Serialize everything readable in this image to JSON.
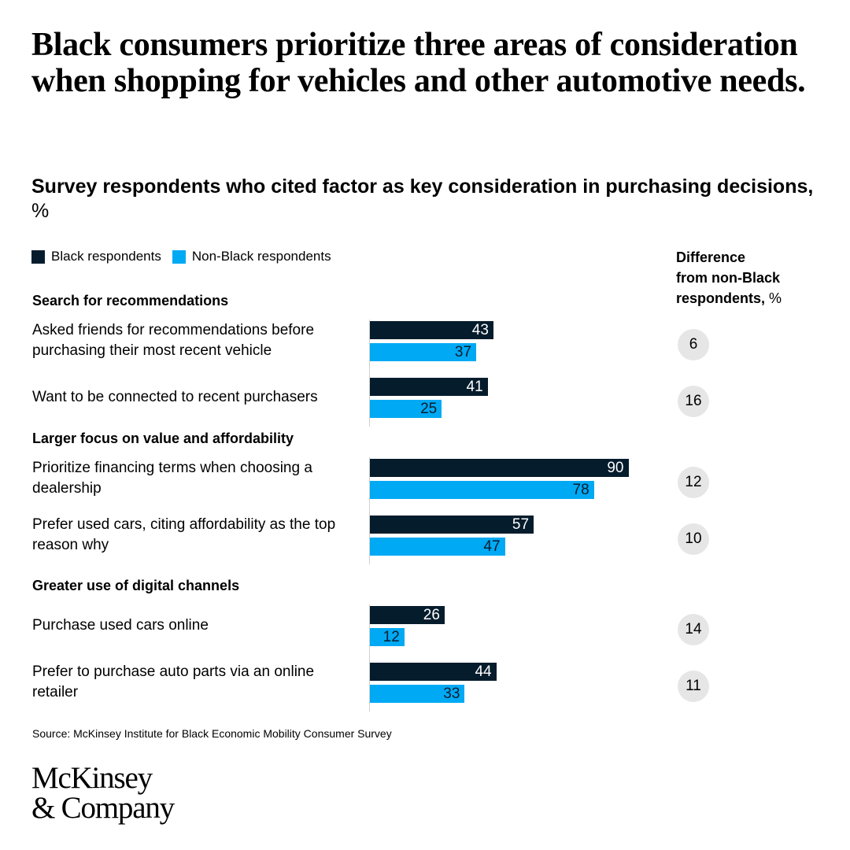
{
  "title": "Black consumers prioritize three areas of consideration when shopping for vehicles and other automotive needs.",
  "subtitle": {
    "main": "Survey respondents who cited factor as key consideration in purchasing decisions,",
    "unit": " %"
  },
  "legend": {
    "black": "Black respondents",
    "nonblack": "Non-Black respondents"
  },
  "diff_header": {
    "line1": "Difference",
    "line2": "from non-Black",
    "line3": "respondents,",
    "unit": " %"
  },
  "colors": {
    "black": "#051c2c",
    "nonblack": "#00a9f4",
    "diff_bg": "#e6e6e6",
    "axis": "#cfcfcf"
  },
  "chart_data": {
    "type": "bar",
    "orientation": "horizontal",
    "series_names": [
      "Black respondents",
      "Non-Black respondents"
    ],
    "groups": [
      {
        "label": "Search for recommendations",
        "rows": [
          {
            "label": "Asked friends for recommendations before purchasing their most recent vehicle",
            "black": 43,
            "nonblack": 37,
            "diff": 6
          },
          {
            "label": "Want to be connected to recent purchasers",
            "black": 41,
            "nonblack": 25,
            "diff": 16
          }
        ]
      },
      {
        "label": "Larger focus on value and affordability",
        "rows": [
          {
            "label": "Prioritize financing terms when choosing a dealership",
            "black": 90,
            "nonblack": 78,
            "diff": 12
          },
          {
            "label": "Prefer used cars, citing affordability as the top reason why",
            "black": 57,
            "nonblack": 47,
            "diff": 10
          }
        ]
      },
      {
        "label": "Greater use of digital channels",
        "rows": [
          {
            "label": "Purchase used cars online",
            "black": 26,
            "nonblack": 12,
            "diff": 14
          },
          {
            "label": "Prefer to purchase auto parts via an online retailer",
            "black": 44,
            "nonblack": 33,
            "diff": 11
          }
        ]
      }
    ]
  },
  "source": "Source: McKinsey Institute for Black Economic Mobility Consumer Survey",
  "logo": {
    "line1": "McKinsey",
    "line2": "& Company"
  }
}
